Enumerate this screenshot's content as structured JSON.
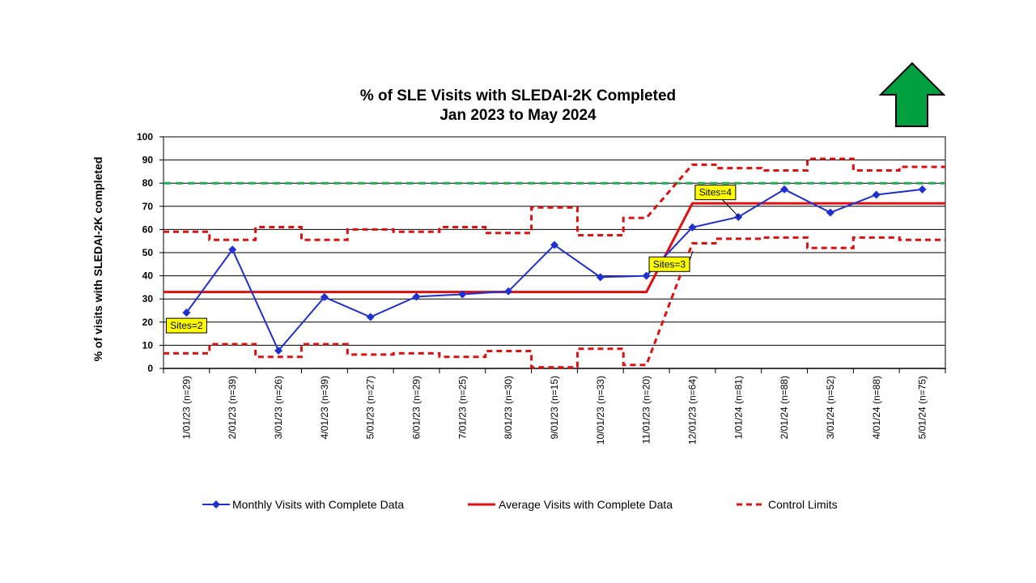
{
  "chart_data": {
    "type": "line",
    "title": "% of SLE Visits with SLEDAI-2K Completed",
    "subtitle": "Jan 2023 to May 2024",
    "ylabel": "% of visits with SLEDAI-2K completed",
    "xlabel": "",
    "ylim": [
      0,
      100
    ],
    "yticks": [
      "0",
      "10",
      "20",
      "30",
      "40",
      "50",
      "60",
      "70",
      "80",
      "90",
      "100"
    ],
    "grid": "horizontal",
    "legend_position": "bottom",
    "categories": [
      "1/01/23 (n=29)",
      "2/01/23 (n=39)",
      "3/01/23 (n=26)",
      "4/01/23 (n=39)",
      "5/01/23 (n=27)",
      "6/01/23 (n=29)",
      "7/01/23 (n=25)",
      "8/01/23 (n=30)",
      "9/01/23 (n=15)",
      "10/01/23 (n=33)",
      "11/01/23 (n=20)",
      "12/01/23 (n=64)",
      "1/01/24 (n=81)",
      "2/01/24 (n=88)",
      "3/01/24 (n=52)",
      "4/01/24 (n=88)",
      "5/01/24 (n=75)"
    ],
    "series": [
      {
        "name": "Monthly Visits with Complete Data",
        "style": "line-diamond",
        "color": "#1F2FD0",
        "values": [
          24.1,
          51.3,
          7.7,
          30.8,
          22.2,
          31.0,
          32.0,
          33.3,
          53.3,
          39.4,
          40.0,
          60.9,
          65.4,
          77.3,
          67.3,
          75.0,
          77.3
        ]
      },
      {
        "name": "Average Visits with Complete Data",
        "style": "solid",
        "color": "#E01010",
        "values": [
          33,
          33,
          33,
          33,
          33,
          33,
          33,
          33,
          33,
          33,
          33,
          71.3,
          71.3,
          71.3,
          71.3,
          71.3,
          71.3
        ]
      },
      {
        "name": "Control Limits",
        "style": "dashed-step",
        "color": "#E01010",
        "upper": [
          59,
          55.5,
          61,
          55.5,
          60,
          59,
          61,
          58.5,
          69.5,
          57.5,
          65,
          88,
          86.5,
          85.5,
          90.5,
          85.5,
          87
        ],
        "lower": [
          6.5,
          10.5,
          5,
          10.5,
          6,
          6.5,
          5,
          7.5,
          0.5,
          8.5,
          1.5,
          54,
          56,
          56.5,
          52,
          56.5,
          55.5
        ]
      }
    ],
    "target": {
      "value": 80,
      "style": "dashed",
      "color": "#22AA55"
    },
    "annotations": [
      {
        "text": "Sites=2",
        "at_category": 0,
        "y": 18.5
      },
      {
        "text": "Sites=3",
        "at_category": 10.5,
        "y": 45
      },
      {
        "text": "Sites=4",
        "at_category": 11.5,
        "y": 76
      }
    ],
    "indicator": {
      "icon": "up-arrow-icon",
      "color": "#00A040",
      "meaning": "higher is better"
    }
  }
}
